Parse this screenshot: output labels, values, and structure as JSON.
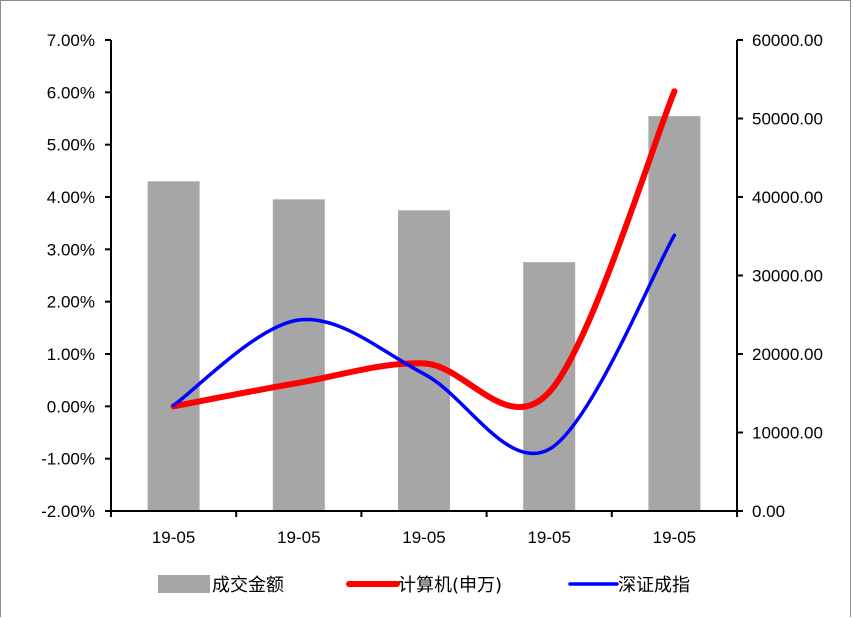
{
  "chart_data": {
    "type": "bar+line",
    "categories": [
      "19-05",
      "19-05",
      "19-05",
      "19-05",
      "19-05"
    ],
    "bar_series": {
      "name": "成交金额",
      "color": "#a6a6a6",
      "axis": "right",
      "values": [
        42000,
        39700,
        38300,
        31700,
        50300
      ]
    },
    "line_series": [
      {
        "name": "计算机(申万)",
        "color": "#ff0000",
        "axis": "left",
        "values": [
          0.0,
          0.45,
          0.82,
          0.27,
          6.02
        ]
      },
      {
        "name": "深证成指",
        "color": "#0000ff",
        "axis": "left",
        "values": [
          0.02,
          1.65,
          0.62,
          -0.82,
          3.27
        ]
      }
    ],
    "left_axis": {
      "ylim": [
        -2,
        7
      ],
      "ticks": [
        "-2.00%",
        "-1.00%",
        "0.00%",
        "1.00%",
        "2.00%",
        "3.00%",
        "4.00%",
        "5.00%",
        "6.00%",
        "7.00%"
      ]
    },
    "right_axis": {
      "ylim": [
        0,
        60000
      ],
      "ticks": [
        "0.00",
        "10000.00",
        "20000.00",
        "30000.00",
        "40000.00",
        "50000.00",
        "60000.00"
      ]
    },
    "legend": {
      "position": "bottom",
      "items": [
        "成交金额",
        "计算机(申万)",
        "深证成指"
      ]
    },
    "smooth_lines": true,
    "grid": false
  }
}
